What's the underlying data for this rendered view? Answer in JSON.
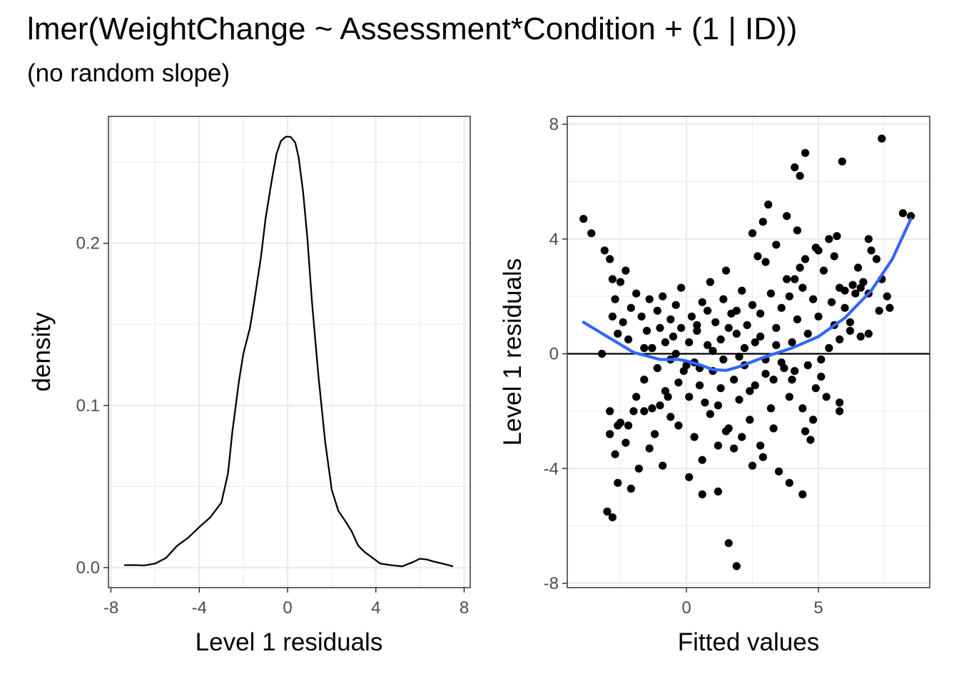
{
  "title": "lmer(WeightChange ~ Assessment*Condition + (1 | ID))",
  "subtitle": "(no random slope)",
  "colors": {
    "smooth": "#3366FF",
    "points": "#000000",
    "grid": "#EBEBEB",
    "border": "#333333"
  },
  "chart_data": [
    {
      "type": "line",
      "name": "density-plot",
      "xlabel": "Level 1 residuals",
      "ylabel": "density",
      "xlim": [
        -8,
        8
      ],
      "ylim": [
        0,
        0.265
      ],
      "x_ticks": [
        -8,
        -4,
        0,
        4,
        8
      ],
      "x_tick_labels": [
        "-8",
        "-4",
        "0",
        "4",
        "8"
      ],
      "y_ticks": [
        0.0,
        0.1,
        0.2
      ],
      "y_tick_labels": [
        "0.0",
        "0.1",
        "0.2"
      ],
      "grid": true,
      "series": [
        {
          "name": "density",
          "x": [
            -7.4,
            -7.0,
            -6.5,
            -6.0,
            -5.5,
            -5.0,
            -4.5,
            -4.0,
            -3.5,
            -3.0,
            -2.7,
            -2.5,
            -2.2,
            -2.0,
            -1.7,
            -1.5,
            -1.2,
            -1.0,
            -0.7,
            -0.5,
            -0.3,
            -0.1,
            0.0,
            0.15,
            0.35,
            0.5,
            0.7,
            0.9,
            1.1,
            1.4,
            1.7,
            2.0,
            2.3,
            2.6,
            2.9,
            3.2,
            3.5,
            3.8,
            4.2,
            4.7,
            5.2,
            5.7,
            6.0,
            6.3,
            6.6,
            7.0,
            7.5
          ],
          "values": [
            0.0015,
            0.0016,
            0.0013,
            0.0025,
            0.006,
            0.0135,
            0.0185,
            0.025,
            0.031,
            0.04,
            0.058,
            0.084,
            0.115,
            0.132,
            0.148,
            0.165,
            0.192,
            0.215,
            0.24,
            0.255,
            0.263,
            0.2655,
            0.2657,
            0.2655,
            0.262,
            0.253,
            0.232,
            0.203,
            0.165,
            0.118,
            0.078,
            0.048,
            0.035,
            0.029,
            0.0225,
            0.0135,
            0.0095,
            0.0065,
            0.0025,
            0.0015,
            0.0008,
            0.0035,
            0.0055,
            0.005,
            0.0038,
            0.0025,
            0.0008
          ]
        }
      ]
    },
    {
      "type": "scatter",
      "name": "residuals-vs-fitted",
      "xlabel": "Fitted values",
      "ylabel": "Level 1 residuals",
      "xlim": [
        -4.5,
        9.2
      ],
      "ylim": [
        -8.2,
        8.0
      ],
      "x_ticks": [
        0,
        5
      ],
      "x_tick_labels": [
        "0",
        "5"
      ],
      "y_ticks": [
        -8,
        -4,
        0,
        4,
        8
      ],
      "y_tick_labels": [
        "-8",
        "-4",
        "0",
        "4",
        "8"
      ],
      "grid": true,
      "reference_line_y": 0,
      "points": [
        [
          -3.9,
          4.7
        ],
        [
          -3.6,
          4.2
        ],
        [
          -3.1,
          3.6
        ],
        [
          -2.9,
          3.3
        ],
        [
          -2.8,
          2.6
        ],
        [
          -2.5,
          2.5
        ],
        [
          -2.3,
          2.9
        ],
        [
          -3.2,
          0.0
        ],
        [
          -2.8,
          1.3
        ],
        [
          -2.7,
          1.9
        ],
        [
          -2.6,
          0.7
        ],
        [
          -2.4,
          1.1
        ],
        [
          -2.2,
          0.5
        ],
        [
          -2.1,
          1.6
        ],
        [
          -1.9,
          2.1
        ],
        [
          -1.7,
          1.3
        ],
        [
          -1.5,
          0.8
        ],
        [
          -1.4,
          1.9
        ],
        [
          -1.3,
          0.2
        ],
        [
          -1.1,
          1.5
        ],
        [
          -1.0,
          0.9
        ],
        [
          -0.9,
          2.0
        ],
        [
          -0.8,
          0.4
        ],
        [
          -0.6,
          1.2
        ],
        [
          -0.5,
          0.6
        ],
        [
          -0.4,
          1.7
        ],
        [
          -2.9,
          -2.0
        ],
        [
          -2.6,
          -2.5
        ],
        [
          -2.5,
          -2.4
        ],
        [
          -2.3,
          -3.1
        ],
        [
          -2.0,
          -2.0
        ],
        [
          -1.8,
          -4.0
        ],
        [
          -1.6,
          -2.0
        ],
        [
          -1.4,
          -3.3
        ],
        [
          -1.2,
          -2.8
        ],
        [
          -0.9,
          -3.9
        ],
        [
          -0.6,
          -2.2
        ],
        [
          -0.3,
          -2.5
        ],
        [
          -2.6,
          -4.5
        ],
        [
          -2.1,
          -4.7
        ],
        [
          -3.0,
          -5.5
        ],
        [
          -2.8,
          -5.7
        ],
        [
          -2.9,
          -2.8
        ],
        [
          -2.7,
          -3.5
        ],
        [
          -2.2,
          -2.5
        ],
        [
          -1.9,
          -1.5
        ],
        [
          -1.6,
          -0.9
        ],
        [
          -1.3,
          -1.9
        ],
        [
          -1.1,
          -0.5
        ],
        [
          -0.8,
          -1.3
        ],
        [
          -0.6,
          -0.2
        ],
        [
          -0.3,
          -1.0
        ],
        [
          -0.1,
          -0.6
        ],
        [
          0.1,
          -1.5
        ],
        [
          0.3,
          -0.3
        ],
        [
          0.5,
          -1.1
        ],
        [
          0.1,
          0.4
        ],
        [
          0.2,
          1.3
        ],
        [
          0.4,
          0.8
        ],
        [
          0.6,
          1.8
        ],
        [
          0.8,
          0.3
        ],
        [
          0.9,
          2.5
        ],
        [
          1.1,
          1.1
        ],
        [
          1.3,
          0.5
        ],
        [
          1.5,
          2.9
        ],
        [
          1.7,
          1.4
        ],
        [
          1.9,
          0.7
        ],
        [
          2.1,
          2.2
        ],
        [
          2.3,
          1.0
        ],
        [
          2.5,
          1.7
        ],
        [
          2.7,
          3.4
        ],
        [
          2.8,
          0.6
        ],
        [
          1.0,
          -0.6
        ],
        [
          1.2,
          -1.8
        ],
        [
          1.4,
          -0.2
        ],
        [
          1.6,
          -2.6
        ],
        [
          1.8,
          -0.9
        ],
        [
          2.0,
          -1.6
        ],
        [
          2.2,
          -0.4
        ],
        [
          2.4,
          -2.3
        ],
        [
          2.6,
          -1.1
        ],
        [
          2.8,
          -3.2
        ],
        [
          3.0,
          -0.7
        ],
        [
          3.2,
          -1.9
        ],
        [
          0.3,
          -2.9
        ],
        [
          0.6,
          -3.7
        ],
        [
          0.9,
          -2.1
        ],
        [
          1.2,
          -3.2
        ],
        [
          1.5,
          -2.7
        ],
        [
          1.8,
          -3.3
        ],
        [
          2.1,
          -2.9
        ],
        [
          2.5,
          -3.9
        ],
        [
          2.9,
          -3.6
        ],
        [
          3.3,
          -2.6
        ],
        [
          3.5,
          -4.1
        ],
        [
          3.9,
          -4.5
        ],
        [
          4.4,
          -4.9
        ],
        [
          0.1,
          -4.3
        ],
        [
          0.6,
          -4.9
        ],
        [
          1.2,
          -4.8
        ],
        [
          1.6,
          -6.6
        ],
        [
          1.9,
          -7.4
        ],
        [
          3.0,
          3.2
        ],
        [
          3.2,
          2.1
        ],
        [
          3.4,
          0.9
        ],
        [
          3.6,
          1.6
        ],
        [
          3.8,
          2.6
        ],
        [
          4.0,
          0.4
        ],
        [
          4.2,
          1.2
        ],
        [
          4.4,
          2.3
        ],
        [
          4.6,
          0.7
        ],
        [
          4.8,
          1.9
        ],
        [
          5.0,
          1.3
        ],
        [
          5.2,
          2.9
        ],
        [
          5.4,
          0.2
        ],
        [
          5.6,
          1.0
        ],
        [
          5.8,
          2.3
        ],
        [
          6.0,
          1.6
        ],
        [
          6.2,
          0.8
        ],
        [
          6.4,
          2.1
        ],
        [
          3.0,
          -0.2
        ],
        [
          3.3,
          -0.9
        ],
        [
          3.6,
          -0.3
        ],
        [
          3.9,
          -1.5
        ],
        [
          4.1,
          -0.6
        ],
        [
          4.4,
          -1.9
        ],
        [
          4.6,
          -0.4
        ],
        [
          4.9,
          -1.2
        ],
        [
          5.1,
          -0.8
        ],
        [
          5.3,
          -1.5
        ],
        [
          5.8,
          -1.7
        ],
        [
          5.8,
          -2.0
        ],
        [
          4.5,
          -2.7
        ],
        [
          4.7,
          -3.0
        ],
        [
          4.8,
          -2.3
        ],
        [
          3.1,
          5.2
        ],
        [
          2.9,
          4.6
        ],
        [
          3.8,
          4.8
        ],
        [
          4.2,
          4.3
        ],
        [
          4.5,
          3.3
        ],
        [
          5.0,
          3.6
        ],
        [
          5.4,
          4.0
        ],
        [
          5.6,
          3.4
        ],
        [
          5.7,
          4.1
        ],
        [
          4.9,
          3.7
        ],
        [
          4.3,
          3.0
        ],
        [
          3.4,
          3.8
        ],
        [
          4.1,
          2.6
        ],
        [
          5.9,
          6.7
        ],
        [
          4.1,
          6.5
        ],
        [
          4.3,
          6.2
        ],
        [
          4.5,
          7.0
        ],
        [
          6.9,
          4.0
        ],
        [
          7.0,
          3.6
        ],
        [
          7.2,
          3.3
        ],
        [
          7.4,
          2.6
        ],
        [
          7.6,
          2.0
        ],
        [
          7.3,
          1.5
        ],
        [
          7.7,
          1.6
        ],
        [
          6.5,
          3.0
        ],
        [
          6.7,
          2.5
        ],
        [
          6.9,
          2.1
        ],
        [
          6.6,
          0.6
        ],
        [
          6.9,
          0.7
        ],
        [
          6.3,
          2.4
        ],
        [
          6.6,
          2.3
        ],
        [
          8.2,
          4.9
        ],
        [
          8.5,
          4.8
        ],
        [
          7.4,
          7.5
        ],
        [
          6.0,
          2.2
        ],
        [
          5.8,
          0.5
        ],
        [
          2.5,
          4.2
        ],
        [
          3.9,
          2.0
        ],
        [
          5.1,
          -0.2
        ],
        [
          5.5,
          1.8
        ],
        [
          6.2,
          1.1
        ],
        [
          -0.2,
          2.3
        ],
        [
          -0.7,
          -1.5
        ],
        [
          0.5,
          -0.5
        ],
        [
          0.8,
          1.5
        ],
        [
          1.4,
          1.9
        ],
        [
          2.0,
          -0.1
        ],
        [
          2.6,
          0.4
        ],
        [
          3.7,
          -0.5
        ],
        [
          -1.6,
          0.2
        ],
        [
          -1.0,
          -1.8
        ],
        [
          -0.4,
          0.0
        ],
        [
          0.0,
          -0.4
        ],
        [
          0.4,
          1.0
        ],
        [
          1.0,
          0.1
        ],
        [
          1.6,
          0.9
        ],
        [
          2.2,
          0.2
        ],
        [
          2.8,
          1.4
        ],
        [
          3.4,
          0.3
        ],
        [
          4.0,
          -0.9
        ],
        [
          -0.2,
          0.9
        ],
        [
          0.7,
          -1.7
        ],
        [
          1.3,
          -1.2
        ],
        [
          1.9,
          1.5
        ],
        [
          2.4,
          -1.3
        ]
      ],
      "smooth_series": {
        "name": "loess",
        "x": [
          -3.9,
          -3.0,
          -2.0,
          -1.0,
          -0.3,
          0.0,
          0.5,
          1.0,
          1.5,
          2.0,
          3.0,
          4.0,
          5.0,
          6.0,
          7.0,
          7.8,
          8.5
        ],
        "values": [
          1.1,
          0.6,
          0.05,
          -0.2,
          -0.2,
          -0.25,
          -0.38,
          -0.55,
          -0.58,
          -0.45,
          -0.1,
          0.2,
          0.6,
          1.25,
          2.2,
          3.3,
          4.7
        ]
      }
    }
  ]
}
